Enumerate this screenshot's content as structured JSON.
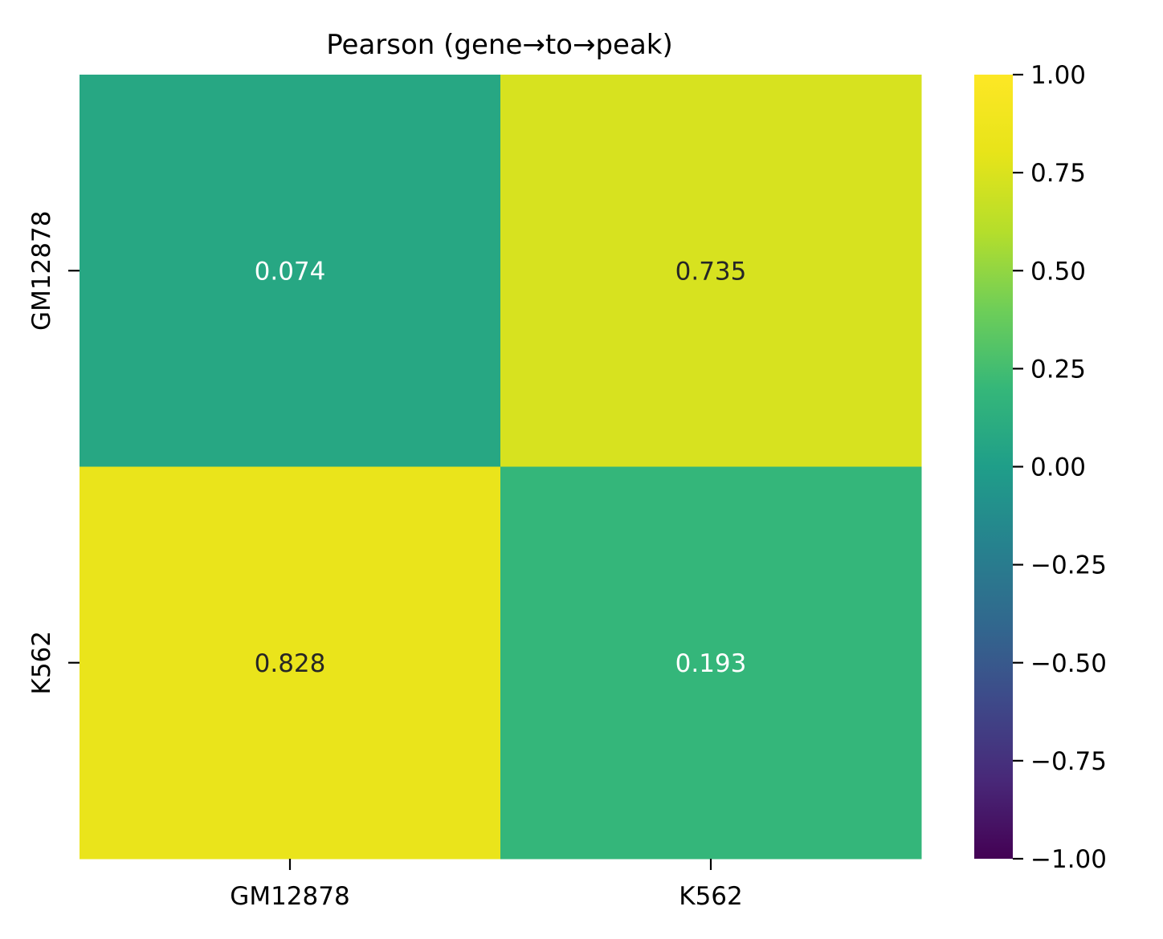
{
  "chart_data": {
    "type": "heatmap",
    "title": "Pearson (gene→to→peak)",
    "xlabel": "",
    "ylabel": "",
    "x_categories": [
      "GM12878",
      "K562"
    ],
    "y_categories": [
      "GM12878",
      "K562"
    ],
    "values": [
      [
        0.074,
        0.735
      ],
      [
        0.828,
        0.193
      ]
    ],
    "value_labels": [
      [
        "0.074",
        "0.735"
      ],
      [
        "0.828",
        "0.193"
      ]
    ],
    "value_label_colors": [
      [
        "#ffffff",
        "#262626"
      ],
      [
        "#262626",
        "#ffffff"
      ]
    ],
    "colormap": "viridis",
    "vmin": -1.0,
    "vmax": 1.0,
    "colorbar_ticks": [
      1.0,
      0.75,
      0.5,
      0.25,
      0.0,
      -0.25,
      -0.5,
      -0.75,
      -1.0
    ],
    "colorbar_tick_labels": [
      "1.00",
      "0.75",
      "0.50",
      "0.25",
      "0.00",
      "−0.25",
      "−0.50",
      "−0.75",
      "−1.00"
    ],
    "grid": false
  }
}
